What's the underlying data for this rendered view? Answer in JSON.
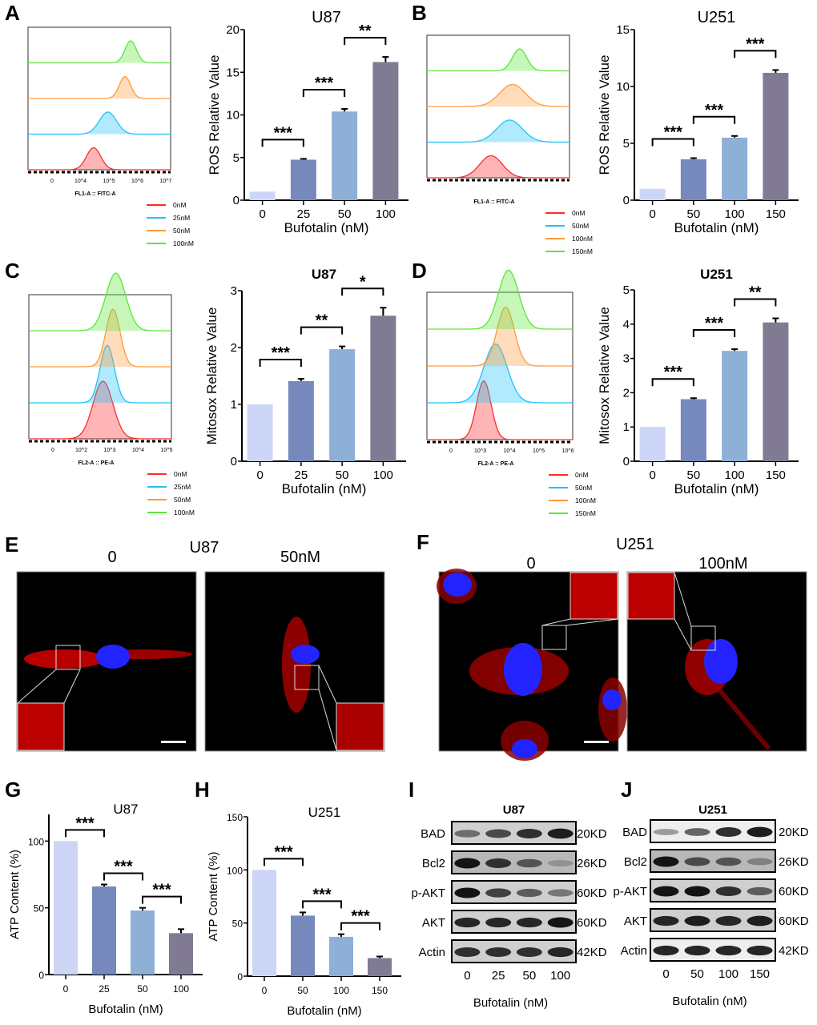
{
  "figure": {
    "colors": {
      "bar_palette": [
        "#cdd6f6",
        "#7789bc",
        "#8eafd6",
        "#807b93"
      ],
      "histogram_palette": {
        "0nM": "#ff2a2a",
        "low": "#1fc3f5",
        "mid": "#ff9a3a",
        "high": "#5ce63a"
      },
      "micrograph_bg": "#000000",
      "mitochondria": "#ff1a1a",
      "nucleus": "#2323ff"
    },
    "panels": {
      "A": {
        "label": "A",
        "flow": {
          "xlabel": "FL1-A :: FITC-A",
          "ticks": [
            "0",
            "10^4",
            "10^5",
            "10^6",
            "10^7"
          ],
          "legend": [
            "0nM",
            "25nM",
            "50nM",
            "100nM"
          ]
        }
      },
      "B": {
        "label": "B",
        "flow": {
          "xlabel": "FL1-A :: FITC-A",
          "ticks": [],
          "legend": [
            "0nM",
            "50nM",
            "100nM",
            "150nM"
          ]
        }
      },
      "C": {
        "label": "C",
        "flow": {
          "xlabel": "FL2-A :: PE-A",
          "ticks": [
            "0",
            "10^2",
            "10^3",
            "10^4",
            "10^5"
          ],
          "legend": [
            "0nM",
            "25nM",
            "50nM",
            "100nM"
          ]
        }
      },
      "D": {
        "label": "D",
        "flow": {
          "xlabel": "FL2-A :: PE-A",
          "ticks": [
            "0",
            "10^3",
            "10^4",
            "10^5",
            "10^6"
          ],
          "legend": [
            "0nM",
            "50nM",
            "100nM",
            "150nM"
          ]
        }
      },
      "E": {
        "label": "E",
        "title": "U87",
        "images": [
          "0",
          "50nM"
        ]
      },
      "F": {
        "label": "F",
        "title": "U251",
        "images": [
          "0",
          "100nM"
        ]
      },
      "G": {
        "label": "G"
      },
      "H": {
        "label": "H"
      },
      "I": {
        "label": "I",
        "title": "U87",
        "xlabel": "Bufotalin (nM)",
        "lanes": [
          "0",
          "25",
          "50",
          "100"
        ],
        "rows": [
          {
            "protein": "BAD",
            "size": "20KD"
          },
          {
            "protein": "Bcl2",
            "size": "26KD"
          },
          {
            "protein": "p-AKT",
            "size": "60KD"
          },
          {
            "protein": "AKT",
            "size": "60KD"
          },
          {
            "protein": "Actin",
            "size": "42KD"
          }
        ],
        "band_intensity": [
          [
            0.5,
            0.7,
            0.85,
            0.95
          ],
          [
            1.0,
            0.85,
            0.65,
            0.3
          ],
          [
            1.0,
            0.75,
            0.6,
            0.45
          ],
          [
            0.9,
            0.9,
            0.9,
            1.0
          ],
          [
            0.85,
            0.85,
            0.85,
            0.9
          ]
        ]
      },
      "J": {
        "label": "J",
        "title": "U251",
        "xlabel": "Bufotalin (nM)",
        "lanes": [
          "0",
          "50",
          "100",
          "150"
        ],
        "rows": [
          {
            "protein": "BAD",
            "size": "20KD"
          },
          {
            "protein": "Bcl2",
            "size": "26KD"
          },
          {
            "protein": "p-AKT",
            "size": "60KD"
          },
          {
            "protein": "AKT",
            "size": "60KD"
          },
          {
            "protein": "Actin",
            "size": "42KD"
          }
        ],
        "band_intensity": [
          [
            0.25,
            0.55,
            0.85,
            0.95
          ],
          [
            1.0,
            0.7,
            0.65,
            0.4
          ],
          [
            1.0,
            1.0,
            0.85,
            0.6
          ],
          [
            0.9,
            0.95,
            0.9,
            0.95
          ],
          [
            0.9,
            0.9,
            0.9,
            0.9
          ]
        ]
      }
    }
  },
  "chart_data": [
    {
      "id": "A",
      "type": "bar",
      "title": "U87",
      "title_bold": false,
      "xlabel": "Bufotalin (nM)",
      "ylabel": "ROS Relative Value",
      "categories": [
        "0",
        "25",
        "50",
        "100"
      ],
      "values": [
        1.0,
        4.75,
        10.4,
        16.2
      ],
      "errors": [
        0,
        0.1,
        0.3,
        0.6
      ],
      "ylim": [
        0,
        20
      ],
      "yticks": [
        0,
        5,
        10,
        15,
        20
      ],
      "significance": [
        {
          "from": 0,
          "to": 1,
          "label": "***"
        },
        {
          "from": 1,
          "to": 2,
          "label": "***"
        },
        {
          "from": 2,
          "to": 3,
          "label": "**"
        }
      ]
    },
    {
      "id": "B",
      "type": "bar",
      "title": "U251",
      "title_bold": false,
      "xlabel": "Bufotalin (nM)",
      "ylabel": "ROS Relative Value",
      "categories": [
        "0",
        "50",
        "100",
        "150"
      ],
      "values": [
        1.0,
        3.6,
        5.5,
        11.2
      ],
      "errors": [
        0,
        0.1,
        0.15,
        0.25
      ],
      "ylim": [
        0,
        15
      ],
      "yticks": [
        0,
        5,
        10,
        15
      ],
      "significance": [
        {
          "from": 0,
          "to": 1,
          "label": "***"
        },
        {
          "from": 1,
          "to": 2,
          "label": "***"
        },
        {
          "from": 2,
          "to": 3,
          "label": "***"
        }
      ]
    },
    {
      "id": "C",
      "type": "bar",
      "title": "U87",
      "title_bold": true,
      "xlabel": "Bufotalin (nM)",
      "ylabel": "Mitosox Relative Value",
      "categories": [
        "0",
        "25",
        "50",
        "100"
      ],
      "values": [
        1.0,
        1.41,
        1.97,
        2.56
      ],
      "errors": [
        0,
        0.04,
        0.05,
        0.14
      ],
      "ylim": [
        0,
        3
      ],
      "yticks": [
        0,
        1,
        2,
        3
      ],
      "significance": [
        {
          "from": 0,
          "to": 1,
          "label": "***"
        },
        {
          "from": 1,
          "to": 2,
          "label": "**"
        },
        {
          "from": 2,
          "to": 3,
          "label": "*"
        }
      ]
    },
    {
      "id": "D",
      "type": "bar",
      "title": "U251",
      "title_bold": true,
      "xlabel": "Bufotalin (nM)",
      "ylabel": "Mitosox Relative Value",
      "categories": [
        "0",
        "50",
        "100",
        "150"
      ],
      "values": [
        1.0,
        1.81,
        3.22,
        4.05
      ],
      "errors": [
        0,
        0.03,
        0.05,
        0.12
      ],
      "ylim": [
        0,
        5
      ],
      "yticks": [
        0,
        1,
        2,
        3,
        4,
        5
      ],
      "significance": [
        {
          "from": 0,
          "to": 1,
          "label": "***"
        },
        {
          "from": 1,
          "to": 2,
          "label": "***"
        },
        {
          "from": 2,
          "to": 3,
          "label": "**"
        }
      ]
    },
    {
      "id": "G",
      "type": "bar",
      "title": "U87",
      "title_bold": false,
      "xlabel": "Bufotalin (nM)",
      "ylabel": "ATP Content (%)",
      "categories": [
        "0",
        "25",
        "50",
        "100"
      ],
      "values": [
        100,
        66,
        48,
        31
      ],
      "errors": [
        0,
        1.5,
        2,
        3
      ],
      "ylim": [
        0,
        120
      ],
      "yticks": [
        0,
        50,
        100
      ],
      "significance": [
        {
          "from": 0,
          "to": 1,
          "label": "***"
        },
        {
          "from": 1,
          "to": 2,
          "label": "***"
        },
        {
          "from": 2,
          "to": 3,
          "label": "***"
        }
      ]
    },
    {
      "id": "H",
      "type": "bar",
      "title": "U251",
      "title_bold": false,
      "xlabel": "Bufotalin (nM)",
      "ylabel": "ATP Content (%)",
      "categories": [
        "0",
        "50",
        "100",
        "150"
      ],
      "values": [
        100,
        57,
        37,
        17
      ],
      "errors": [
        0,
        3,
        2.5,
        1.5
      ],
      "ylim": [
        0,
        150
      ],
      "yticks": [
        0,
        50,
        100,
        150
      ],
      "significance": [
        {
          "from": 0,
          "to": 1,
          "label": "***"
        },
        {
          "from": 1,
          "to": 2,
          "label": "***"
        },
        {
          "from": 2,
          "to": 3,
          "label": "***"
        }
      ]
    }
  ]
}
